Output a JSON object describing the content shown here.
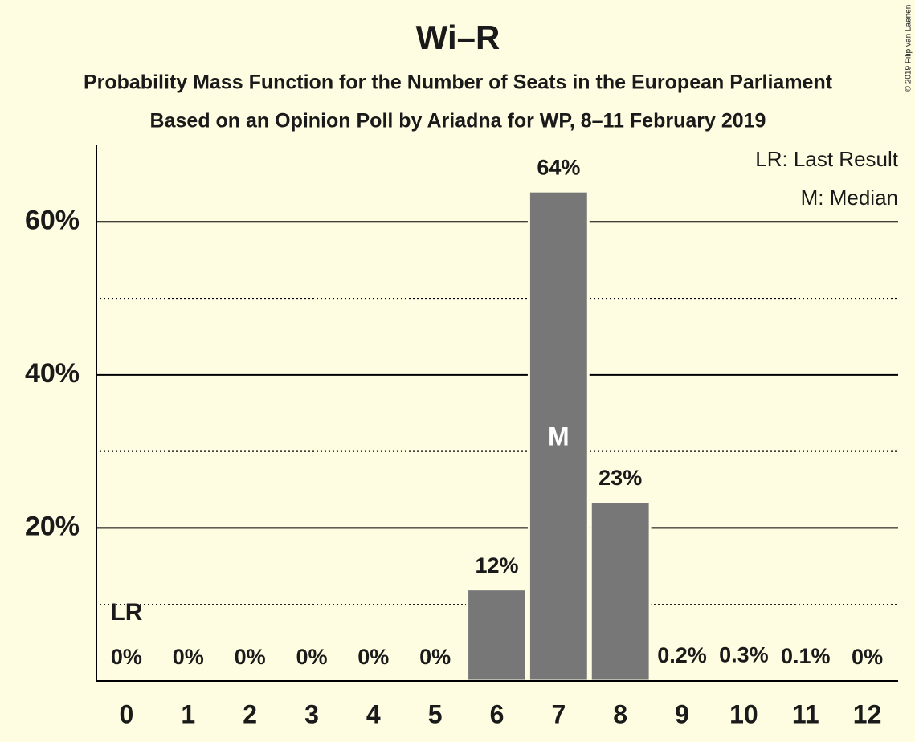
{
  "chart_data": {
    "type": "bar",
    "title": "Wi–R",
    "subtitle": "Probability Mass Function for the Number of Seats in the European Parliament",
    "subtitle2": "Based on an Opinion Poll by Ariadna for WP, 8–11 February 2019",
    "copyright": "© 2019 Filip van Laenen",
    "categories": [
      "0",
      "1",
      "2",
      "3",
      "4",
      "5",
      "6",
      "7",
      "8",
      "9",
      "10",
      "11",
      "12"
    ],
    "values": [
      0,
      0,
      0,
      0,
      0,
      0,
      12,
      64,
      23.4,
      0.2,
      0.3,
      0.1,
      0
    ],
    "value_labels": [
      "0%",
      "0%",
      "0%",
      "0%",
      "0%",
      "0%",
      "12%",
      "64%",
      "23%",
      "0.2%",
      "0.3%",
      "0.1%",
      "0%"
    ],
    "color": "#777777",
    "ylim": [
      0,
      70
    ],
    "yticks": [
      {
        "value": 20,
        "label": "20%"
      },
      {
        "value": 40,
        "label": "40%"
      },
      {
        "value": 60,
        "label": "60%"
      }
    ],
    "minor_yticks": [
      10,
      30,
      50
    ],
    "grid": true,
    "annotations": {
      "last_result_marker": "LR",
      "median_marker": "M"
    },
    "legend": [
      "LR: Last Result",
      "M: Median"
    ]
  }
}
